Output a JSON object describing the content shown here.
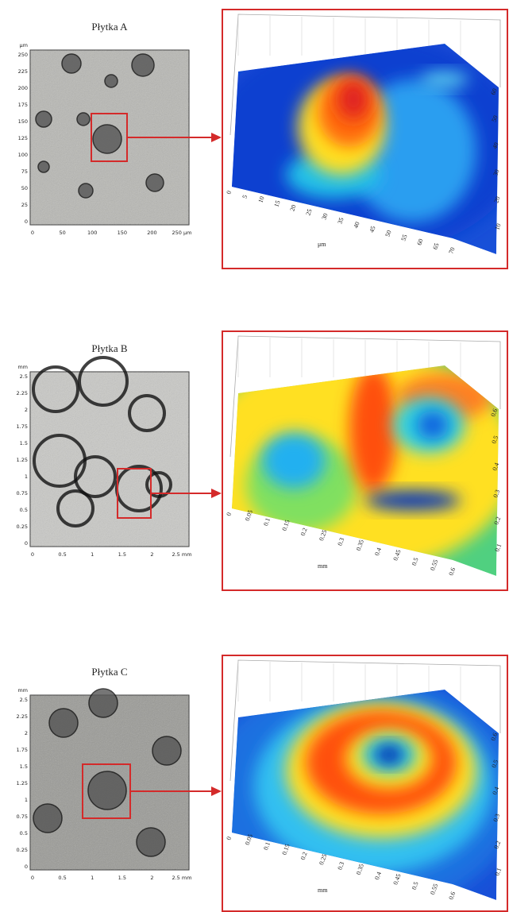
{
  "panels": [
    {
      "title": "Płytka A",
      "image_unit": "μm",
      "image_yticks": [
        "250",
        "225",
        "200",
        "175",
        "150",
        "125",
        "100",
        "75",
        "50",
        "25",
        "0"
      ],
      "image_xticks": [
        "0",
        "50",
        "100",
        "150",
        "200",
        "250 μm"
      ],
      "surface_xticks": [
        "0",
        "5",
        "10",
        "15",
        "20",
        "25",
        "30",
        "35",
        "40",
        "45",
        "50",
        "55",
        "60",
        "65",
        "70"
      ],
      "surface_xunit": "μm",
      "surface_yticks": [
        "10",
        "20",
        "30",
        "40",
        "50",
        "60"
      ]
    },
    {
      "title": "Płytka B",
      "image_unit": "mm",
      "image_yticks": [
        "2.5",
        "2.25",
        "2",
        "1.75",
        "1.5",
        "1.25",
        "1",
        "0.75",
        "0.5",
        "0.25",
        "0"
      ],
      "image_xticks": [
        "0",
        "0.5",
        "1",
        "1.5",
        "2",
        "2.5 mm"
      ],
      "surface_xticks": [
        "0",
        "0.05",
        "0.1",
        "0.15",
        "0.2",
        "0.25",
        "0.3",
        "0.35",
        "0.4",
        "0.45",
        "0.5",
        "0.55",
        "0.6"
      ],
      "surface_xunit": "mm",
      "surface_yticks": [
        "0.1",
        "0.2",
        "0.3",
        "0.4",
        "0.5",
        "0.6"
      ]
    },
    {
      "title": "Płytka C",
      "image_unit": "mm",
      "image_yticks": [
        "2.5",
        "2.25",
        "2",
        "1.75",
        "1.5",
        "1.25",
        "1",
        "0.75",
        "0.5",
        "0.25",
        "0"
      ],
      "image_xticks": [
        "0",
        "0.5",
        "1",
        "1.5",
        "2",
        "2.5 mm"
      ],
      "surface_xticks": [
        "0",
        "0.05",
        "0.1",
        "0.15",
        "0.2",
        "0.25",
        "0.3",
        "0.35",
        "0.4",
        "0.45",
        "0.5",
        "0.55",
        "0.6"
      ],
      "surface_xunit": "mm",
      "surface_yticks": [
        "0.1",
        "0.2",
        "0.3",
        "0.4",
        "0.5",
        "0.6"
      ]
    }
  ]
}
